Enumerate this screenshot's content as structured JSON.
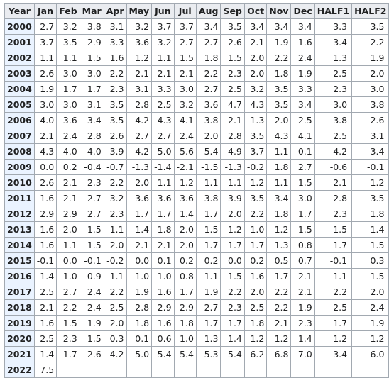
{
  "table": {
    "headers": [
      "Year",
      "Jan",
      "Feb",
      "Mar",
      "Apr",
      "May",
      "Jun",
      "Jul",
      "Aug",
      "Sep",
      "Oct",
      "Nov",
      "Dec",
      "HALF1",
      "HALF2"
    ],
    "rows": [
      [
        "2000",
        "2.7",
        "3.2",
        "3.8",
        "3.1",
        "3.2",
        "3.7",
        "3.7",
        "3.4",
        "3.5",
        "3.4",
        "3.4",
        "3.4",
        "3.3",
        "3.5"
      ],
      [
        "2001",
        "3.7",
        "3.5",
        "2.9",
        "3.3",
        "3.6",
        "3.2",
        "2.7",
        "2.7",
        "2.6",
        "2.1",
        "1.9",
        "1.6",
        "3.4",
        "2.2"
      ],
      [
        "2002",
        "1.1",
        "1.1",
        "1.5",
        "1.6",
        "1.2",
        "1.1",
        "1.5",
        "1.8",
        "1.5",
        "2.0",
        "2.2",
        "2.4",
        "1.3",
        "1.9"
      ],
      [
        "2003",
        "2.6",
        "3.0",
        "3.0",
        "2.2",
        "2.1",
        "2.1",
        "2.1",
        "2.2",
        "2.3",
        "2.0",
        "1.8",
        "1.9",
        "2.5",
        "2.0"
      ],
      [
        "2004",
        "1.9",
        "1.7",
        "1.7",
        "2.3",
        "3.1",
        "3.3",
        "3.0",
        "2.7",
        "2.5",
        "3.2",
        "3.5",
        "3.3",
        "2.3",
        "3.0"
      ],
      [
        "2005",
        "3.0",
        "3.0",
        "3.1",
        "3.5",
        "2.8",
        "2.5",
        "3.2",
        "3.6",
        "4.7",
        "4.3",
        "3.5",
        "3.4",
        "3.0",
        "3.8"
      ],
      [
        "2006",
        "4.0",
        "3.6",
        "3.4",
        "3.5",
        "4.2",
        "4.3",
        "4.1",
        "3.8",
        "2.1",
        "1.3",
        "2.0",
        "2.5",
        "3.8",
        "2.6"
      ],
      [
        "2007",
        "2.1",
        "2.4",
        "2.8",
        "2.6",
        "2.7",
        "2.7",
        "2.4",
        "2.0",
        "2.8",
        "3.5",
        "4.3",
        "4.1",
        "2.5",
        "3.1"
      ],
      [
        "2008",
        "4.3",
        "4.0",
        "4.0",
        "3.9",
        "4.2",
        "5.0",
        "5.6",
        "5.4",
        "4.9",
        "3.7",
        "1.1",
        "0.1",
        "4.2",
        "3.4"
      ],
      [
        "2009",
        "0.0",
        "0.2",
        "-0.4",
        "-0.7",
        "-1.3",
        "-1.4",
        "-2.1",
        "-1.5",
        "-1.3",
        "-0.2",
        "1.8",
        "2.7",
        "-0.6",
        "-0.1"
      ],
      [
        "2010",
        "2.6",
        "2.1",
        "2.3",
        "2.2",
        "2.0",
        "1.1",
        "1.2",
        "1.1",
        "1.1",
        "1.2",
        "1.1",
        "1.5",
        "2.1",
        "1.2"
      ],
      [
        "2011",
        "1.6",
        "2.1",
        "2.7",
        "3.2",
        "3.6",
        "3.6",
        "3.6",
        "3.8",
        "3.9",
        "3.5",
        "3.4",
        "3.0",
        "2.8",
        "3.5"
      ],
      [
        "2012",
        "2.9",
        "2.9",
        "2.7",
        "2.3",
        "1.7",
        "1.7",
        "1.4",
        "1.7",
        "2.0",
        "2.2",
        "1.8",
        "1.7",
        "2.3",
        "1.8"
      ],
      [
        "2013",
        "1.6",
        "2.0",
        "1.5",
        "1.1",
        "1.4",
        "1.8",
        "2.0",
        "1.5",
        "1.2",
        "1.0",
        "1.2",
        "1.5",
        "1.5",
        "1.4"
      ],
      [
        "2014",
        "1.6",
        "1.1",
        "1.5",
        "2.0",
        "2.1",
        "2.1",
        "2.0",
        "1.7",
        "1.7",
        "1.7",
        "1.3",
        "0.8",
        "1.7",
        "1.5"
      ],
      [
        "2015",
        "-0.1",
        "0.0",
        "-0.1",
        "-0.2",
        "0.0",
        "0.1",
        "0.2",
        "0.2",
        "0.0",
        "0.2",
        "0.5",
        "0.7",
        "-0.1",
        "0.3"
      ],
      [
        "2016",
        "1.4",
        "1.0",
        "0.9",
        "1.1",
        "1.0",
        "1.0",
        "0.8",
        "1.1",
        "1.5",
        "1.6",
        "1.7",
        "2.1",
        "1.1",
        "1.5"
      ],
      [
        "2017",
        "2.5",
        "2.7",
        "2.4",
        "2.2",
        "1.9",
        "1.6",
        "1.7",
        "1.9",
        "2.2",
        "2.0",
        "2.2",
        "2.1",
        "2.2",
        "2.0"
      ],
      [
        "2018",
        "2.1",
        "2.2",
        "2.4",
        "2.5",
        "2.8",
        "2.9",
        "2.9",
        "2.7",
        "2.3",
        "2.5",
        "2.2",
        "1.9",
        "2.5",
        "2.4"
      ],
      [
        "2019",
        "1.6",
        "1.5",
        "1.9",
        "2.0",
        "1.8",
        "1.6",
        "1.8",
        "1.7",
        "1.7",
        "1.8",
        "2.1",
        "2.3",
        "1.7",
        "1.9"
      ],
      [
        "2020",
        "2.5",
        "2.3",
        "1.5",
        "0.3",
        "0.1",
        "0.6",
        "1.0",
        "1.3",
        "1.4",
        "1.2",
        "1.2",
        "1.4",
        "1.2",
        "1.2"
      ],
      [
        "2021",
        "1.4",
        "1.7",
        "2.6",
        "4.2",
        "5.0",
        "5.4",
        "5.4",
        "5.3",
        "5.4",
        "6.2",
        "6.8",
        "7.0",
        "3.4",
        "6.0"
      ],
      [
        "2022",
        "7.5",
        "",
        "",
        "",
        "",
        "",
        "",
        "",
        "",
        "",
        "",
        "",
        "",
        ""
      ]
    ]
  }
}
